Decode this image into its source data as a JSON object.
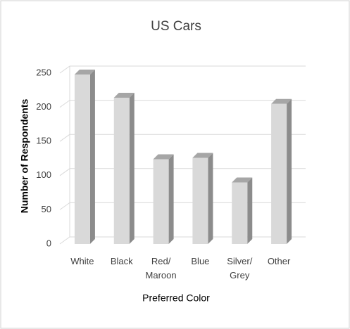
{
  "chart_data": {
    "type": "bar3d",
    "title": "US Cars",
    "x_label": "Preferred Color",
    "y_label": "Number of Respondents",
    "categories": [
      "White",
      "Black",
      "Red/\nMaroon",
      "Blue",
      "Silver/\nGrey",
      "Other"
    ],
    "values": [
      248,
      214,
      124,
      126,
      90,
      205
    ],
    "color": "#d9d9d9",
    "ylim": [
      0,
      250
    ],
    "yticks": [
      0,
      50,
      100,
      150,
      200,
      250
    ],
    "grid": true
  }
}
